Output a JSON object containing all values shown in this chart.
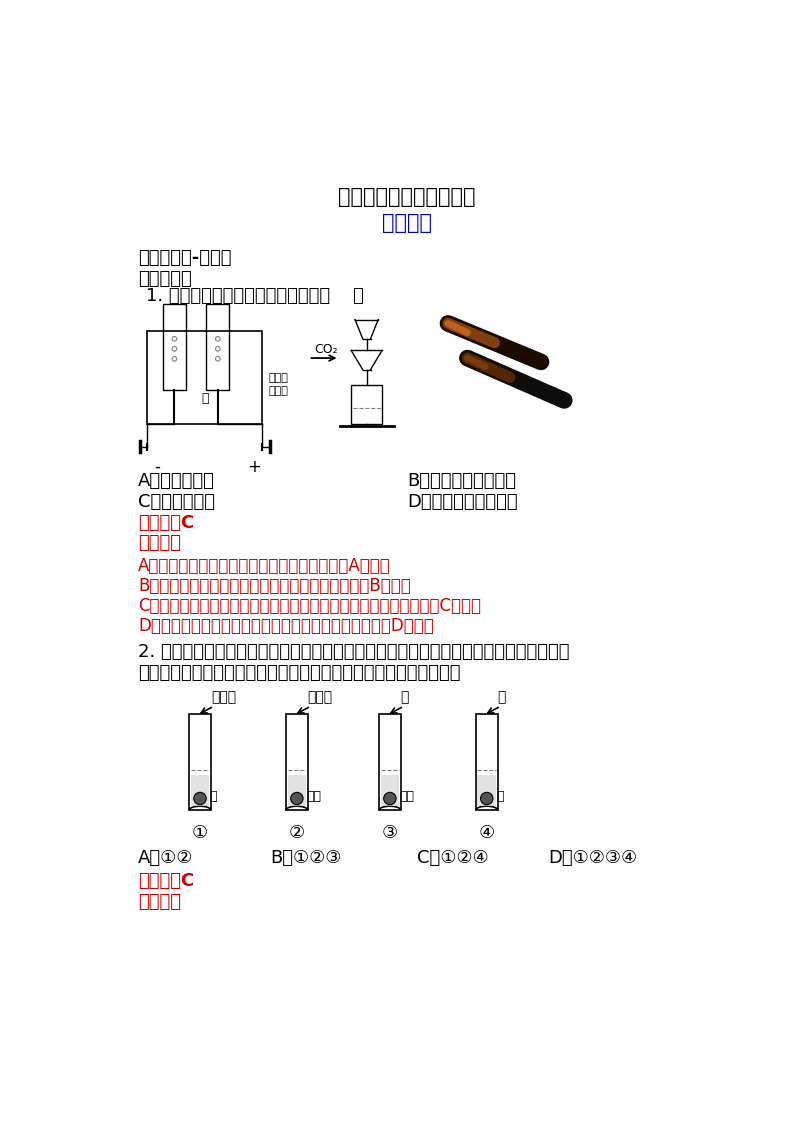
{
  "title1": "浙教版九年级上册第三节",
  "title2": "常见的酸",
  "title1_color": "#000000",
  "title2_color": "#0000CD",
  "section_header": "【同步练习-解析】",
  "section1": "一、选择题",
  "q1": "1. 下列过程中只发生物理变化的是（    ）",
  "q1_optA": "A．电解水实验",
  "q1_optB": "B．验证二氧化碳性质",
  "q1_optC": "C．过滤泥浆水",
  "q1_optD": "D．木条遇浓硫酸变黑",
  "answer1_label": "【答案】C",
  "analysis1_label": "【解析】",
  "analysis1_A": "A、水电解生成氢气和氧气，属于化学变化，故A错误。",
  "analysis1_B": "B、二氧化碳和水反应生成碳酸，属于化学变化，故B错误。",
  "analysis1_C": "C、过滤时固体和液体的分离，没有新物质生成，属于物理变化，故C正确。",
  "analysis1_D": "D、木条遇浓硫酸变黑生成碳等物质，属于化学变化，故D错误。",
  "q2_line1": "2. 在稀硫酸除铁锈的实验中，发现生锈的铁钉表面有一些气泡产生。小明猜想气泡是硫酸",
  "q2_line2": "与铁反应生成的，为了验证猜想，他应选择以下哪几个实验进行验证",
  "q2_tube1": "稀盐酸",
  "q2_tube2": "稀硫酸",
  "q2_tube3": "水",
  "q2_tube4": "水",
  "q2_content1": "铁",
  "q2_content2": "铁锈",
  "q2_content3": "铁锈",
  "q2_content4": "铁",
  "q2_num1": "①",
  "q2_num2": "②",
  "q2_num3": "③",
  "q2_num4": "④",
  "q2_optA": "A．①②",
  "q2_optB": "B．①②③",
  "q2_optC": "C．①②④",
  "q2_optD": "D．①②③④",
  "answer2_label": "【答案】C",
  "analysis2_label": "【解析】",
  "red_color": "#CC0000",
  "black_color": "#000000",
  "bg_color": "#FFFFFF",
  "page_width": 7.94,
  "page_height": 11.23
}
